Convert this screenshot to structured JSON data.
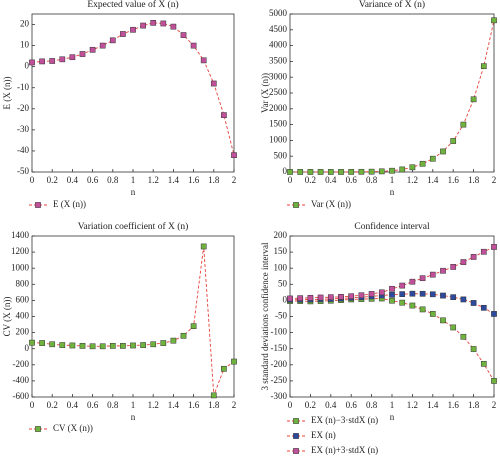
{
  "chart_data": [
    {
      "type": "line",
      "title": "Expected value of X (n)",
      "x_label": "n",
      "y_label": "E (X (n))",
      "x": [
        0,
        0.1,
        0.2,
        0.3,
        0.4,
        0.5,
        0.6,
        0.7,
        0.8,
        0.9,
        1,
        1.1,
        1.2,
        1.3,
        1.4,
        1.5,
        1.6,
        1.7,
        1.8,
        1.9,
        2
      ],
      "series": [
        {
          "name": "E (X (n))",
          "color": "#c0509a",
          "values": [
            2,
            2.5,
            2.7,
            3.5,
            4.5,
            6,
            8,
            10,
            12.5,
            15.5,
            17.5,
            19.5,
            20.8,
            20.5,
            19,
            15,
            10,
            3,
            -8,
            -23,
            -42
          ]
        }
      ],
      "xlim": [
        0,
        2
      ],
      "xticks": [
        0,
        0.2,
        0.4,
        0.6,
        0.8,
        1,
        1.2,
        1.4,
        1.6,
        1.8,
        2
      ],
      "ylim": [
        -50,
        25
      ],
      "yticks": [
        -50,
        -40,
        -30,
        -20,
        -10,
        0,
        10,
        20
      ],
      "line_color": "#e8413c",
      "line_style": "dashed"
    },
    {
      "type": "line",
      "title": "Variance of X (n)",
      "x_label": "n",
      "y_label": "Var (X (n))",
      "x": [
        0,
        0.1,
        0.2,
        0.3,
        0.4,
        0.5,
        0.6,
        0.7,
        0.8,
        0.9,
        1,
        1.1,
        1.2,
        1.3,
        1.4,
        1.5,
        1.6,
        1.7,
        1.8,
        1.9,
        2
      ],
      "series": [
        {
          "name": "Var (X (n))",
          "color": "#6fb23e",
          "values": [
            2,
            2,
            2,
            2,
            2,
            2,
            3,
            6,
            10,
            20,
            40,
            80,
            150,
            260,
            420,
            650,
            980,
            1500,
            2300,
            3350,
            4800
          ]
        }
      ],
      "xlim": [
        0,
        2
      ],
      "xticks": [
        0,
        0.2,
        0.4,
        0.6,
        0.8,
        1,
        1.2,
        1.4,
        1.6,
        1.8,
        2
      ],
      "ylim": [
        0,
        5000
      ],
      "yticks": [
        0,
        500,
        1000,
        1500,
        2000,
        2500,
        3000,
        3500,
        4000,
        4500,
        5000
      ],
      "line_color": "#e8413c",
      "line_style": "dashed"
    },
    {
      "type": "line",
      "title": "Variation coefficient of X (n)",
      "x_label": "n",
      "y_label": "CV (X (n))",
      "x": [
        0,
        0.1,
        0.2,
        0.3,
        0.4,
        0.5,
        0.6,
        0.7,
        0.8,
        0.9,
        1,
        1.1,
        1.2,
        1.3,
        1.4,
        1.5,
        1.6,
        1.7,
        1.8,
        1.9,
        2
      ],
      "series": [
        {
          "name": "CV (X (n))",
          "color": "#6fb23e",
          "values": [
            75,
            70,
            55,
            45,
            40,
            35,
            30,
            30,
            35,
            35,
            40,
            45,
            55,
            70,
            100,
            160,
            280,
            1270,
            -580,
            -250,
            -160
          ]
        }
      ],
      "xlim": [
        0,
        2
      ],
      "xticks": [
        0,
        0.2,
        0.4,
        0.6,
        0.8,
        1,
        1.2,
        1.4,
        1.6,
        1.8,
        2
      ],
      "ylim": [
        -600,
        1400
      ],
      "yticks": [
        -600,
        -400,
        -200,
        0,
        200,
        400,
        600,
        800,
        1000,
        1200,
        1400
      ],
      "line_color": "#e8413c",
      "line_style": "dashed"
    },
    {
      "type": "line",
      "title": "Confidence interval",
      "x_label": "n",
      "y_label": "3 standard deviations confidence interval",
      "x": [
        0,
        0.1,
        0.2,
        0.3,
        0.4,
        0.5,
        0.6,
        0.7,
        0.8,
        0.9,
        1,
        1.1,
        1.2,
        1.3,
        1.4,
        1.5,
        1.6,
        1.7,
        1.8,
        1.9,
        2
      ],
      "series": [
        {
          "name": "EX (n)−3·stdX (n)",
          "color": "#6fb23e",
          "values": [
            -2,
            -2,
            -3,
            -2,
            -1,
            1,
            3,
            4,
            5,
            6,
            -1,
            -7,
            -16,
            -28,
            -42,
            -62,
            -84,
            -113,
            -151,
            -197,
            -250
          ]
        },
        {
          "name": "EX (n)",
          "color": "#2e4a9e",
          "values": [
            2,
            2.5,
            2.7,
            3.5,
            4.5,
            6,
            8,
            10,
            12.5,
            15.5,
            17.5,
            19.5,
            20.8,
            20.5,
            19,
            15,
            10,
            3,
            -8,
            -23,
            -42
          ]
        },
        {
          "name": "EX (n)+3·stdX (n)",
          "color": "#c0509a",
          "values": [
            6,
            7,
            8,
            9,
            10,
            11,
            13,
            16,
            20,
            25,
            36,
            46,
            58,
            69,
            80,
            92,
            104,
            119,
            135,
            151,
            166
          ]
        }
      ],
      "xlim": [
        0,
        2
      ],
      "xticks": [
        0,
        0.2,
        0.4,
        0.6,
        0.8,
        1,
        1.2,
        1.4,
        1.6,
        1.8,
        2
      ],
      "ylim": [
        -300,
        200
      ],
      "yticks": [
        -300,
        -250,
        -200,
        -150,
        -100,
        -50,
        0,
        50,
        100,
        150,
        200
      ],
      "line_color": "#e8413c",
      "line_style": "dashed"
    }
  ]
}
